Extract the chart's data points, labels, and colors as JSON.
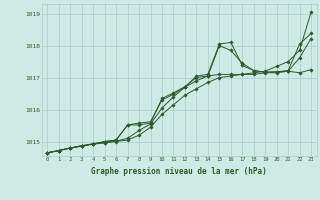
{
  "bg_color": "#ceeae4",
  "grid_color": "#aaccc6",
  "line_color": "#2d5a2d",
  "title": "Graphe pression niveau de la mer (hPa)",
  "xlim": [
    -0.5,
    23.5
  ],
  "ylim": [
    1014.55,
    1019.3
  ],
  "yticks": [
    1015,
    1016,
    1017,
    1018,
    1019
  ],
  "xticks": [
    0,
    1,
    2,
    3,
    4,
    5,
    6,
    7,
    8,
    9,
    10,
    11,
    12,
    13,
    14,
    15,
    16,
    17,
    18,
    19,
    20,
    21,
    22,
    23
  ],
  "series": [
    [
      1014.65,
      1014.72,
      1014.8,
      1014.87,
      1014.92,
      1014.96,
      1015.0,
      1015.05,
      1015.2,
      1015.45,
      1015.85,
      1016.15,
      1016.45,
      1016.65,
      1016.85,
      1017.0,
      1017.05,
      1017.1,
      1017.15,
      1017.2,
      1017.35,
      1017.5,
      1017.85,
      1019.05
    ],
    [
      1014.65,
      1014.72,
      1014.8,
      1014.85,
      1014.93,
      1014.97,
      1015.02,
      1015.1,
      1015.35,
      1015.55,
      1016.05,
      1016.4,
      1016.7,
      1016.9,
      1017.05,
      1017.1,
      1017.1,
      1017.1,
      1017.1,
      1017.15,
      1017.15,
      1017.2,
      1017.15,
      1017.25
    ],
    [
      1014.65,
      1014.72,
      1014.8,
      1014.87,
      1014.93,
      1015.0,
      1015.05,
      1015.52,
      1015.52,
      1015.58,
      1016.35,
      1016.52,
      1016.72,
      1017.0,
      1017.05,
      1018.0,
      1017.85,
      1017.45,
      1017.22,
      1017.17,
      1017.18,
      1017.2,
      1017.62,
      1018.22
    ],
    [
      1014.65,
      1014.72,
      1014.8,
      1014.87,
      1014.93,
      1015.0,
      1015.05,
      1015.52,
      1015.58,
      1015.62,
      1016.3,
      1016.48,
      1016.7,
      1017.05,
      1017.1,
      1018.05,
      1018.1,
      1017.38,
      1017.22,
      1017.17,
      1017.18,
      1017.22,
      1018.05,
      1018.38
    ]
  ]
}
